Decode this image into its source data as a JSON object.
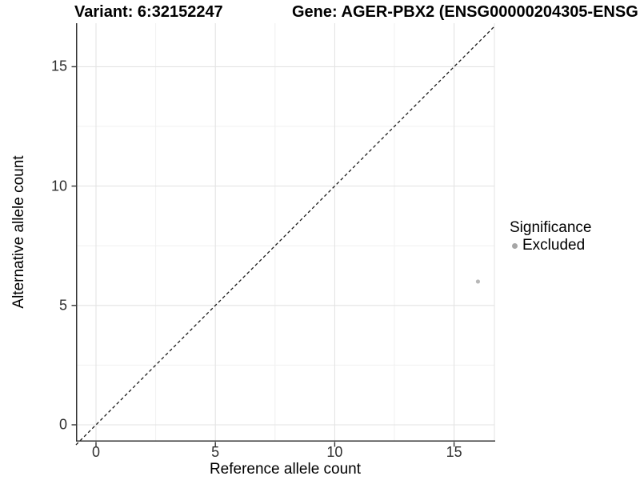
{
  "chart_data": {
    "type": "scatter",
    "title_left": "Variant: 6:32152247",
    "title_right": "Gene: AGER-PBX2 (ENSG00000204305-ENSG",
    "xlabel": "Reference allele count",
    "ylabel": "Alternative allele count",
    "x_ticks": [
      0,
      5,
      10,
      15
    ],
    "y_ticks": [
      0,
      5,
      10,
      15
    ],
    "minor_ticks": [
      2.5,
      7.5,
      12.5
    ],
    "xlim": [
      -0.84,
      16.7
    ],
    "ylim": [
      -0.7,
      16.75
    ],
    "grid": "major and minor, light gray on white",
    "legend_title": "Significance",
    "legend_position": "right-middle",
    "series": [
      {
        "name": "Excluded",
        "point_color": "#b8b8b8",
        "swatch_color": "#a6a6a6",
        "points": [
          [
            16,
            6
          ]
        ]
      }
    ],
    "reference_line": {
      "kind": "identity",
      "equation": "y = x",
      "style": "dashed",
      "color": "#1a1a1a"
    },
    "colors": {
      "axis_line": "#333333",
      "tick_label": "#303030",
      "grid_major": "#e3e3e3",
      "grid_minor": "#f0f0f0",
      "background": "#ffffff"
    }
  }
}
